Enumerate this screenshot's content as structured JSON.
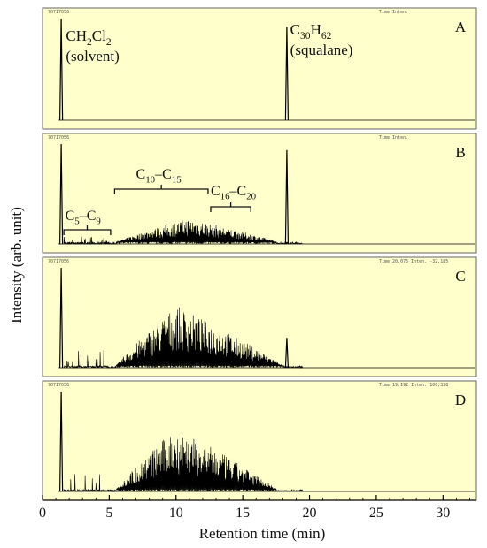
{
  "chart_data": {
    "type": "line",
    "xlabel": "Retention time (min)",
    "ylabel": "Intensity (arb. unit)",
    "xlim": [
      0,
      32.5
    ],
    "x_ticks": [
      0,
      5,
      10,
      15,
      20,
      25,
      30
    ],
    "x_tick_labels": [
      "0",
      "5",
      "10",
      "15",
      "20",
      "25",
      "30"
    ],
    "background_color": "#ffffcc",
    "trace_color": "#000000",
    "panels": [
      {
        "id": "A",
        "header_left": "70717056",
        "header_right": "Time    Inten.",
        "peaks": [
          {
            "x": 1.4,
            "y": 1.0
          },
          {
            "x": 18.3,
            "y": 0.92
          }
        ],
        "annotations": {
          "solvent_formula": [
            "CH",
            "2",
            "Cl",
            "2"
          ],
          "solvent_name": "(solvent)",
          "squalane_formula": [
            "C",
            "30",
            "H",
            "62"
          ],
          "squalane_name": "(squalane)"
        }
      },
      {
        "id": "B",
        "header_left": "70717056",
        "header_right": "Time    Inten.",
        "peaks": [
          {
            "x": 1.4,
            "y": 1.0
          },
          {
            "x": 18.3,
            "y": 0.94
          }
        ],
        "envelope": {
          "start": 5.5,
          "end": 17.5,
          "center": 11.0,
          "height": 0.24
        },
        "early_envelope": {
          "start": 1.6,
          "end": 5.0,
          "height": 0.05
        },
        "annotations": {
          "c5_c9": [
            "C",
            "5",
            "–C",
            "9"
          ],
          "c10_c15": [
            "C",
            "10",
            "–C",
            "15"
          ],
          "c16_c20": [
            "C",
            "16",
            "–C",
            "20"
          ]
        }
      },
      {
        "id": "C",
        "header_left": "70717056",
        "header_right": "Time 20.075  Inten.    -32,185",
        "peaks": [
          {
            "x": 1.4,
            "y": 1.0
          },
          {
            "x": 18.3,
            "y": 0.3
          }
        ],
        "envelope": {
          "start": 5.5,
          "end": 18.0,
          "center": 10.0,
          "height": 0.6
        },
        "early_envelope": {
          "start": 1.6,
          "end": 5.0,
          "height": 0.12
        }
      },
      {
        "id": "D",
        "header_left": "70717056",
        "header_right": "Time 19.192  Inten.    100,338",
        "peaks": [
          {
            "x": 1.4,
            "y": 1.0
          }
        ],
        "envelope": {
          "start": 5.5,
          "end": 17.5,
          "center": 10.0,
          "height": 0.62
        },
        "early_envelope": {
          "start": 1.6,
          "end": 5.0,
          "height": 0.12
        }
      }
    ]
  }
}
